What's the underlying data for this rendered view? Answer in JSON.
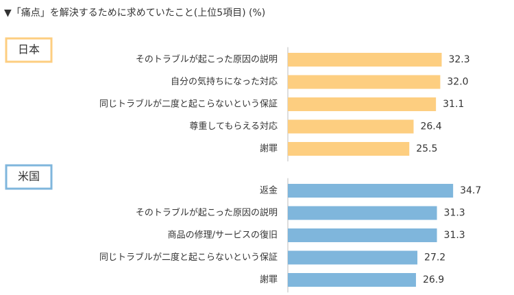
{
  "title": "▼「痛点」を解決するために求めていたこと(上位5項目) (%)",
  "chart_data": [
    {
      "type": "bar",
      "orientation": "horizontal",
      "label": "日本",
      "color": "#fdce80",
      "categories": [
        "そのトラブルが起こった原因の説明",
        "自分の気持ちになった対応",
        "同じトラブルが二度と起こらないという保証",
        "尊重してもらえる対応",
        "謝罪"
      ],
      "values": [
        32.3,
        32.0,
        31.1,
        26.4,
        25.5
      ],
      "value_labels": [
        "32.3",
        "32.0",
        "31.1",
        "26.4",
        "25.5"
      ]
    },
    {
      "type": "bar",
      "orientation": "horizontal",
      "label": "米国",
      "color": "#7fb6dc",
      "categories": [
        "返金",
        "そのトラブルが起こった原因の説明",
        "商品の修理/サービスの復旧",
        "同じトラブルが二度と起こらないという保証",
        "謝罪"
      ],
      "values": [
        34.7,
        31.3,
        31.3,
        27.2,
        26.9
      ],
      "value_labels": [
        "34.7",
        "31.3",
        "31.3",
        "27.2",
        "26.9"
      ]
    }
  ]
}
